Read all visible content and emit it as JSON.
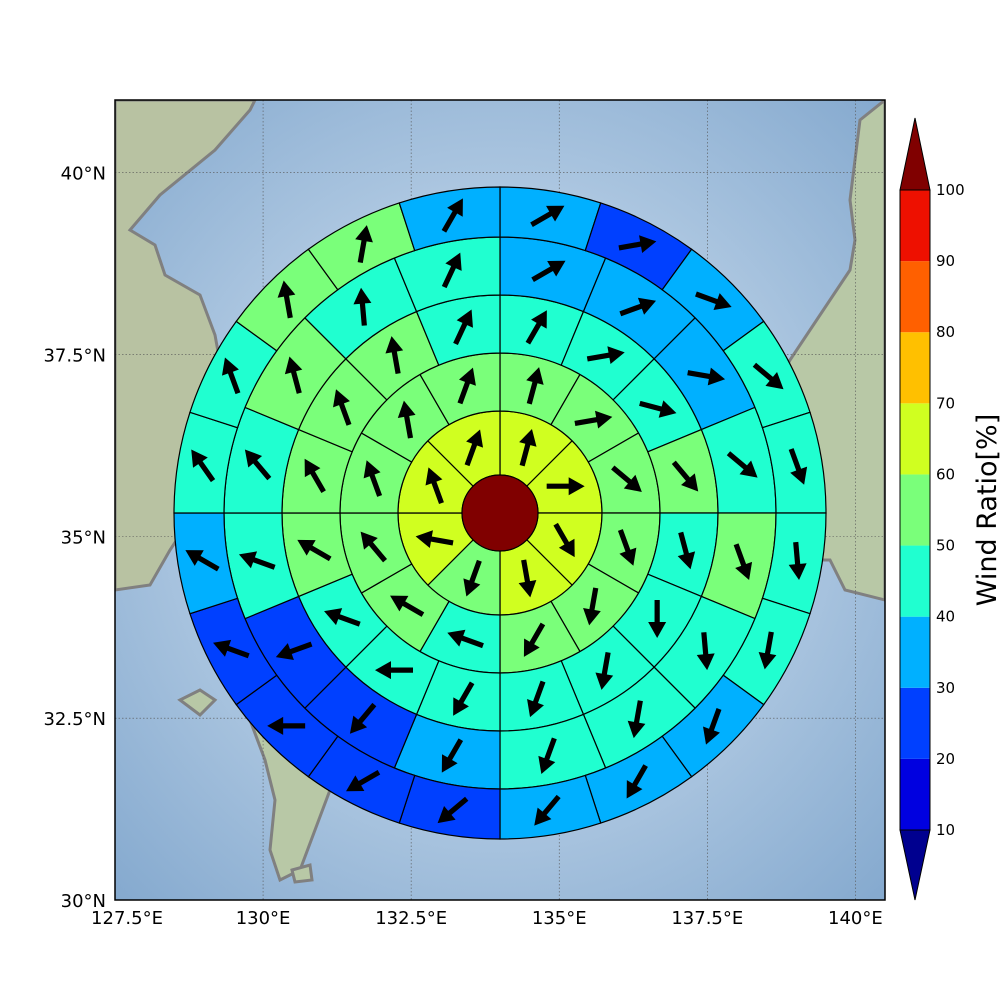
{
  "chart_data": {
    "type": "heatmap",
    "subtype": "polar sector wind ratio map with direction arrows",
    "x_axis": {
      "range": [
        127.5,
        140.5
      ],
      "ticks": [
        127.5,
        130,
        132.5,
        135,
        137.5,
        140
      ],
      "tick_labels": [
        "127.5°E",
        "130°E",
        "132.5°E",
        "135°E",
        "137.5°E",
        "140°E"
      ]
    },
    "y_axis": {
      "range": [
        30,
        41
      ],
      "ticks": [
        30,
        32.5,
        35,
        37.5,
        40
      ],
      "tick_labels": [
        "30°N",
        "32.5°N",
        "35°N",
        "37.5°N",
        "40°N"
      ]
    },
    "grid": true,
    "center": {
      "lon": 133.8,
      "lat": 35.5
    },
    "colorbar": {
      "label": "Wind Ratio[%]",
      "levels": [
        10,
        20,
        30,
        40,
        50,
        60,
        70,
        80,
        90,
        100
      ],
      "tick_labels": [
        "10",
        "20",
        "30",
        "40",
        "50",
        "60",
        "70",
        "80",
        "90",
        "100"
      ],
      "colors": [
        "#00008f",
        "#0000e0",
        "#0040ff",
        "#00b0ff",
        "#20ffd0",
        "#7aff7a",
        "#d0ff20",
        "#ffc000",
        "#ff6000",
        "#ee1000",
        "#800000"
      ]
    },
    "inner_circle": {
      "ratio": 100
    },
    "rings": [
      {
        "ring": 1,
        "sectors": 8,
        "ratios": [
          65,
          60,
          65,
          60,
          55,
          60,
          65,
          65
        ],
        "arrow_headings_deg": [
          15,
          90,
          150,
          170,
          200,
          280,
          340,
          20
        ]
      },
      {
        "ring": 2,
        "sectors": 12,
        "ratios": [
          55,
          55,
          55,
          55,
          50,
          50,
          45,
          55,
          55,
          55,
          55,
          55
        ],
        "arrow_headings_deg": [
          15,
          80,
          130,
          160,
          190,
          210,
          290,
          300,
          320,
          340,
          350,
          20
        ]
      },
      {
        "ring": 3,
        "sectors": 16,
        "ratios": [
          45,
          45,
          45,
          50,
          45,
          45,
          45,
          40,
          40,
          40,
          45,
          50,
          50,
          50,
          50,
          45
        ],
        "arrow_headings_deg": [
          30,
          80,
          105,
          140,
          165,
          180,
          190,
          200,
          210,
          270,
          290,
          300,
          330,
          340,
          350,
          25
        ]
      },
      {
        "ring": 4,
        "sectors": 16,
        "ratios": [
          35,
          35,
          35,
          45,
          50,
          45,
          45,
          45,
          30,
          25,
          25,
          40,
          45,
          50,
          45,
          40
        ],
        "arrow_headings_deg": [
          60,
          70,
          100,
          130,
          160,
          175,
          190,
          200,
          210,
          220,
          250,
          290,
          320,
          345,
          355,
          25
        ]
      },
      {
        "ring": 5,
        "sectors": 20,
        "ratios": [
          35,
          25,
          35,
          40,
          40,
          45,
          40,
          35,
          30,
          30,
          25,
          25,
          25,
          25,
          35,
          40,
          40,
          50,
          50,
          35
        ],
        "arrow_headings_deg": [
          60,
          80,
          110,
          130,
          160,
          175,
          190,
          200,
          210,
          220,
          230,
          240,
          270,
          290,
          300,
          325,
          340,
          350,
          10,
          30
        ]
      }
    ]
  },
  "map": {
    "sea_color": "#8fb3d6",
    "land_color": "#b7c7a8",
    "coast_color": "#808080"
  }
}
